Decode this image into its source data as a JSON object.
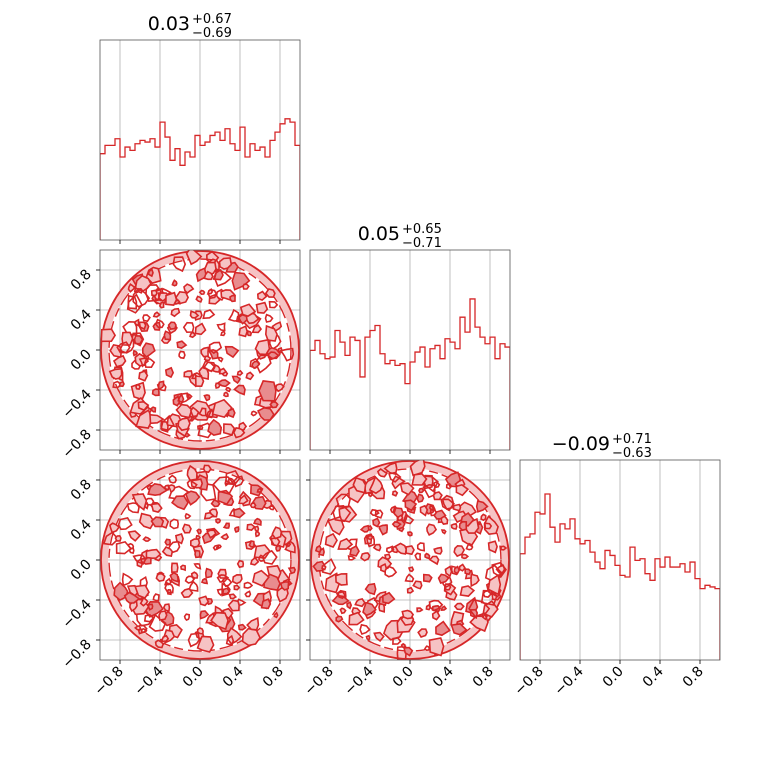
{
  "figure": {
    "type": "corner",
    "accent_color": "#d62728",
    "fill_color_light": "#f6c3c4",
    "fill_color_mid": "#e88c8e",
    "grid_color": "#b0b0b0",
    "grid": true
  },
  "chart_data": {
    "type": "corner",
    "parameters": 3,
    "axis_range": [
      -1.0,
      1.0
    ],
    "tick_values": [
      -0.8,
      -0.4,
      0.0,
      0.4,
      0.8
    ],
    "tick_labels": [
      "−0.8",
      "−0.4",
      "0.0",
      "0.4",
      "0.8"
    ],
    "titles": [
      {
        "median": "0.03",
        "upper": "+0.67",
        "lower": "−0.69"
      },
      {
        "median": "0.05",
        "upper": "+0.65",
        "lower": "−0.71"
      },
      {
        "median": "−0.09",
        "upper": "+0.71",
        "lower": "−0.63"
      }
    ],
    "histograms": [
      {
        "bin_edges_range": [
          -1.0,
          1.0
        ],
        "counts": [
          0.52,
          0.57,
          0.57,
          0.61,
          0.5,
          0.56,
          0.54,
          0.58,
          0.6,
          0.59,
          0.61,
          0.56,
          0.71,
          0.62,
          0.48,
          0.55,
          0.45,
          0.53,
          0.5,
          0.63,
          0.57,
          0.59,
          0.63,
          0.65,
          0.6,
          0.67,
          0.58,
          0.54,
          0.68,
          0.5,
          0.58,
          0.54,
          0.56,
          0.5,
          0.6,
          0.65,
          0.7,
          0.73,
          0.71,
          0.57
        ]
      },
      {
        "bin_edges_range": [
          -1.0,
          1.0
        ],
        "counts": [
          0.6,
          0.66,
          0.58,
          0.55,
          0.56,
          0.72,
          0.65,
          0.57,
          0.68,
          0.66,
          0.44,
          0.68,
          0.72,
          0.75,
          0.58,
          0.52,
          0.54,
          0.51,
          0.52,
          0.4,
          0.53,
          0.59,
          0.62,
          0.5,
          0.61,
          0.63,
          0.55,
          0.67,
          0.65,
          0.61,
          0.8,
          0.71,
          0.91,
          0.74,
          0.68,
          0.64,
          0.68,
          0.55,
          0.64,
          0.62
        ]
      },
      {
        "bin_edges_range": [
          -1.0,
          1.0
        ],
        "counts": [
          0.64,
          0.74,
          0.76,
          0.89,
          0.88,
          1.0,
          0.8,
          0.71,
          0.82,
          0.79,
          0.85,
          0.73,
          0.7,
          0.72,
          0.65,
          0.59,
          0.55,
          0.66,
          0.63,
          0.57,
          0.51,
          0.5,
          0.68,
          0.6,
          0.61,
          0.52,
          0.48,
          0.61,
          0.56,
          0.62,
          0.56,
          0.56,
          0.58,
          0.53,
          0.59,
          0.49,
          0.43,
          0.45,
          0.44,
          0.43
        ]
      }
    ],
    "contours": [
      {
        "x_param": 0,
        "y_param": 1,
        "support": "unit-disk",
        "levels": 2
      },
      {
        "x_param": 0,
        "y_param": 2,
        "support": "unit-disk",
        "levels": 2
      },
      {
        "x_param": 1,
        "y_param": 2,
        "support": "unit-disk",
        "levels": 2
      }
    ]
  }
}
